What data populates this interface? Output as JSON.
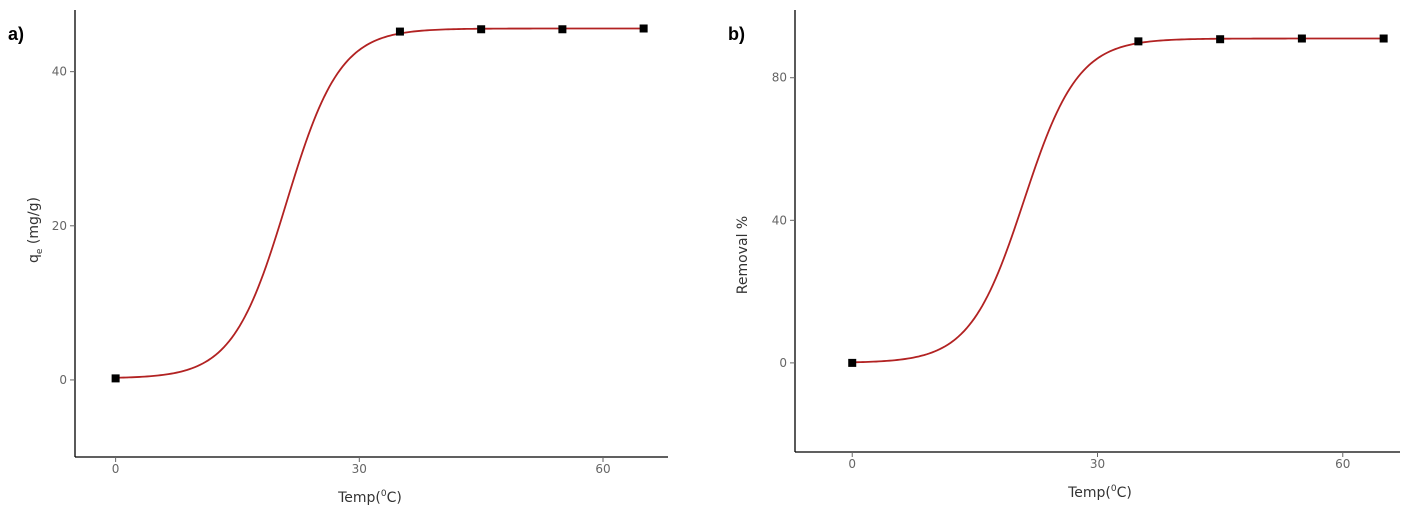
{
  "chart_data": [
    {
      "type": "scatter",
      "panel_label": "a)",
      "xlabel": "Temp(",
      "xlabel_sup": "0",
      "xlabel_end": "C)",
      "ylabel": "q",
      "ylabel_sub": "e",
      "ylabel_end": " (mg/g)",
      "xlim": [
        -5,
        68
      ],
      "ylim": [
        -10,
        48
      ],
      "xticks": [
        0,
        30,
        60
      ],
      "yticks": [
        0,
        20,
        40
      ],
      "x": [
        0,
        35,
        45,
        55,
        65
      ],
      "y": [
        0.2,
        45.2,
        45.5,
        45.5,
        45.6
      ],
      "fit_color": "#b22222",
      "marker_color": "#000000"
    },
    {
      "type": "scatter",
      "panel_label": "b)",
      "xlabel": "Temp(",
      "xlabel_sup": "0",
      "xlabel_end": "C)",
      "ylabel": "Removal %",
      "xlim": [
        -7,
        67
      ],
      "ylim": [
        -25,
        99
      ],
      "xticks": [
        0,
        30,
        60
      ],
      "yticks": [
        0,
        40,
        80
      ],
      "x": [
        0,
        35,
        45,
        55,
        65
      ],
      "y": [
        0,
        90.2,
        90.8,
        91,
        91
      ],
      "fit_color": "#b22222",
      "marker_color": "#000000"
    }
  ]
}
